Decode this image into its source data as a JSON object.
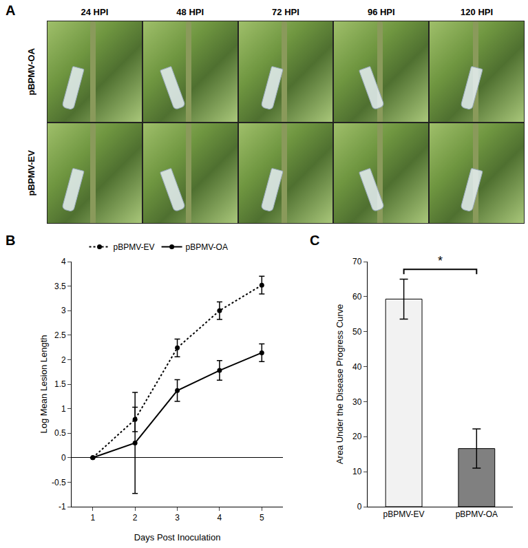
{
  "panel_a": {
    "label": "A",
    "columns": [
      "24 HPI",
      "48 HPI",
      "72 HPI",
      "96 HPI",
      "120 HPI"
    ],
    "rows": [
      "pBPMV-OA",
      "pBPMV-EV"
    ]
  },
  "chart_data": [
    {
      "label": "B",
      "type": "line",
      "x": [
        1,
        2,
        3,
        4,
        5
      ],
      "x_label": "Days Post Inoculation",
      "y_label": "Log Mean Lesion Length",
      "xlim": [
        0.5,
        5.5
      ],
      "xticks": [
        1,
        2,
        3,
        4,
        5
      ],
      "ylim": [
        -1,
        4
      ],
      "yticks": [
        -1,
        -0.5,
        0,
        0.5,
        1,
        1.5,
        2,
        2.5,
        3,
        3.5,
        4
      ],
      "grid": false,
      "legend": "top",
      "series": [
        {
          "name": "pBPMV-EV",
          "color": "#000000",
          "line_style": "dotted",
          "marker": "circle",
          "values": [
            0,
            0.78,
            2.24,
            3.0,
            3.52
          ],
          "errors": [
            0,
            0.25,
            0.18,
            0.18,
            0.18
          ]
        },
        {
          "name": "pBPMV-OA",
          "color": "#000000",
          "line_style": "solid",
          "marker": "circle",
          "values": [
            0,
            0.3,
            1.37,
            1.78,
            2.14
          ],
          "errors": [
            0,
            1.03,
            0.22,
            0.2,
            0.18
          ]
        }
      ]
    },
    {
      "label": "C",
      "type": "bar",
      "categories": [
        "pBPMV-EV",
        "pBPMV-OA"
      ],
      "values": [
        59.3,
        16.6
      ],
      "errors": [
        5.7,
        5.6
      ],
      "colors": [
        "#f2f2f2",
        "#808080"
      ],
      "y_label": "Area Under the Disease Progress Curve",
      "ylim": [
        0,
        70
      ],
      "yticks": [
        0,
        10,
        20,
        30,
        40,
        50,
        60,
        70
      ],
      "grid": false,
      "annotations": [
        "*"
      ]
    }
  ]
}
